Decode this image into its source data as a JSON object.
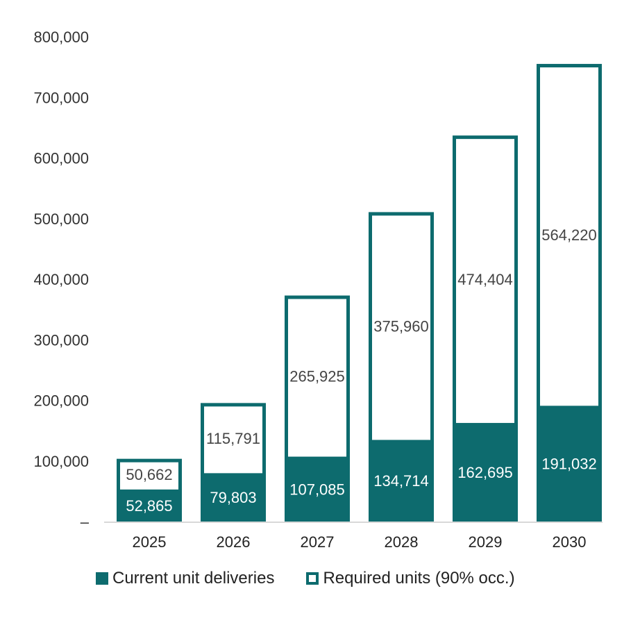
{
  "chart_data": {
    "type": "bar",
    "stacked": true,
    "categories": [
      "2025",
      "2026",
      "2027",
      "2028",
      "2029",
      "2030"
    ],
    "series": [
      {
        "name": "Current unit deliveries",
        "values": [
          52865,
          79803,
          107085,
          134714,
          162695,
          191032
        ],
        "style": "filled"
      },
      {
        "name": "Required units (90% occ.)",
        "values": [
          50662,
          115791,
          265925,
          375960,
          474404,
          564220
        ],
        "style": "outline"
      }
    ],
    "data_labels": [
      [
        "52,865",
        "79,803",
        "107,085",
        "134,714",
        "162,695",
        "191,032"
      ],
      [
        "50,662",
        "115,791",
        "265,925",
        "375,960",
        "474,404",
        "564,220"
      ]
    ],
    "ylim": [
      0,
      800000
    ],
    "yticks": [
      "–",
      "100,000",
      "200,000",
      "300,000",
      "400,000",
      "500,000",
      "600,000",
      "700,000",
      "800,000"
    ],
    "grid": false,
    "legend_position": "bottom",
    "colors": {
      "bar": "#0d6b6e",
      "axis": "#cccccc"
    }
  }
}
